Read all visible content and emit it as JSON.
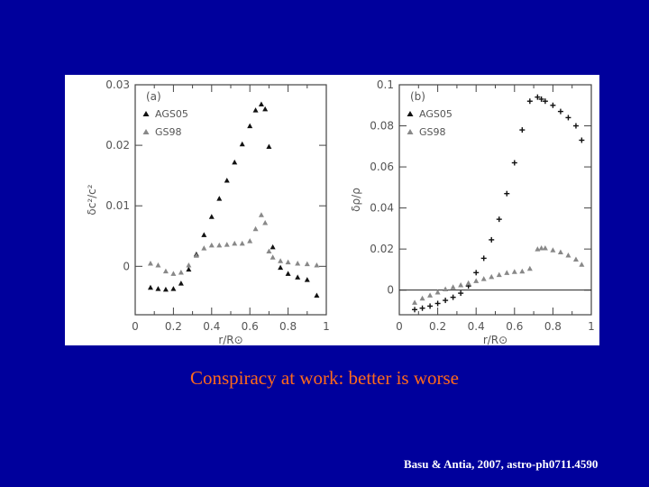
{
  "caption": "Conspiracy at work: better is worse",
  "citation": "Basu & Antia, 2007, astro-ph0711.4590",
  "chart_data": [
    {
      "type": "scatter",
      "panel": "(a)",
      "xlabel": "r/R⊙",
      "ylabel": "δc²/c²",
      "xlim": [
        0,
        1
      ],
      "ylim": [
        -0.008,
        0.03
      ],
      "xticks": [
        "0",
        "0.2",
        "0.4",
        "0.6",
        "0.8",
        "1"
      ],
      "yticks": [
        "0",
        "0.01",
        "0.02",
        "0.03"
      ],
      "legend_position": "top-left",
      "series": [
        {
          "name": "AGS05",
          "marker": "triangle",
          "color": "#111111",
          "x": [
            0.08,
            0.12,
            0.16,
            0.2,
            0.24,
            0.28,
            0.32,
            0.36,
            0.4,
            0.44,
            0.48,
            0.52,
            0.56,
            0.6,
            0.63,
            0.66,
            0.68,
            0.7,
            0.72,
            0.76,
            0.8,
            0.85,
            0.9,
            0.95
          ],
          "y": [
            -0.0035,
            -0.0037,
            -0.0038,
            -0.0037,
            -0.0028,
            -0.0005,
            0.002,
            0.0052,
            0.0082,
            0.0112,
            0.0142,
            0.0172,
            0.0202,
            0.0232,
            0.0258,
            0.0268,
            0.026,
            0.0198,
            0.0032,
            -0.0002,
            -0.0012,
            -0.0018,
            -0.0022,
            -0.0048
          ]
        },
        {
          "name": "GS98",
          "marker": "triangle",
          "color": "#888888",
          "x": [
            0.08,
            0.12,
            0.16,
            0.2,
            0.24,
            0.28,
            0.32,
            0.36,
            0.4,
            0.44,
            0.48,
            0.52,
            0.56,
            0.6,
            0.63,
            0.66,
            0.68,
            0.7,
            0.72,
            0.76,
            0.8,
            0.85,
            0.9,
            0.95
          ],
          "y": [
            0.0005,
            0.0002,
            -0.0008,
            -0.0012,
            -0.001,
            0.0002,
            0.0018,
            0.003,
            0.0035,
            0.0035,
            0.0036,
            0.0038,
            0.0038,
            0.0042,
            0.0062,
            0.0085,
            0.0072,
            0.0025,
            0.0015,
            0.0009,
            0.0007,
            0.0005,
            0.0004,
            0.0002
          ]
        }
      ]
    },
    {
      "type": "scatter",
      "panel": "(b)",
      "xlabel": "r/R⊙",
      "ylabel": "δρ/ρ",
      "xlim": [
        0,
        1
      ],
      "ylim": [
        -0.012,
        0.1
      ],
      "xticks": [
        "0",
        "0.2",
        "0.4",
        "0.6",
        "0.8",
        "1"
      ],
      "yticks": [
        "0",
        "0.02",
        "0.04",
        "0.06",
        "0.08",
        "0.1"
      ],
      "zero_line": true,
      "legend_position": "top-left",
      "series": [
        {
          "name": "AGS05",
          "marker": "plus",
          "color": "#111111",
          "x": [
            0.08,
            0.12,
            0.16,
            0.2,
            0.24,
            0.28,
            0.32,
            0.36,
            0.4,
            0.44,
            0.48,
            0.52,
            0.56,
            0.6,
            0.64,
            0.68,
            0.72,
            0.74,
            0.76,
            0.8,
            0.84,
            0.88,
            0.92,
            0.95
          ],
          "y": [
            -0.0095,
            -0.0088,
            -0.0078,
            -0.0065,
            -0.005,
            -0.0035,
            -0.0015,
            0.002,
            0.0085,
            0.0155,
            0.0245,
            0.0345,
            0.047,
            0.062,
            0.078,
            0.092,
            0.094,
            0.093,
            0.092,
            0.09,
            0.087,
            0.084,
            0.08,
            0.073
          ]
        },
        {
          "name": "GS98",
          "marker": "triangle",
          "color": "#888888",
          "x": [
            0.08,
            0.12,
            0.16,
            0.2,
            0.24,
            0.28,
            0.32,
            0.36,
            0.4,
            0.44,
            0.48,
            0.52,
            0.56,
            0.6,
            0.64,
            0.68,
            0.72,
            0.74,
            0.76,
            0.8,
            0.84,
            0.88,
            0.92,
            0.95
          ],
          "y": [
            -0.006,
            -0.004,
            -0.0025,
            -0.001,
            0.0005,
            0.0015,
            0.0025,
            0.0035,
            0.0045,
            0.0055,
            0.0065,
            0.0075,
            0.0085,
            0.009,
            0.0092,
            0.0105,
            0.02,
            0.0205,
            0.0205,
            0.0195,
            0.0185,
            0.017,
            0.015,
            0.0125
          ]
        }
      ]
    }
  ]
}
